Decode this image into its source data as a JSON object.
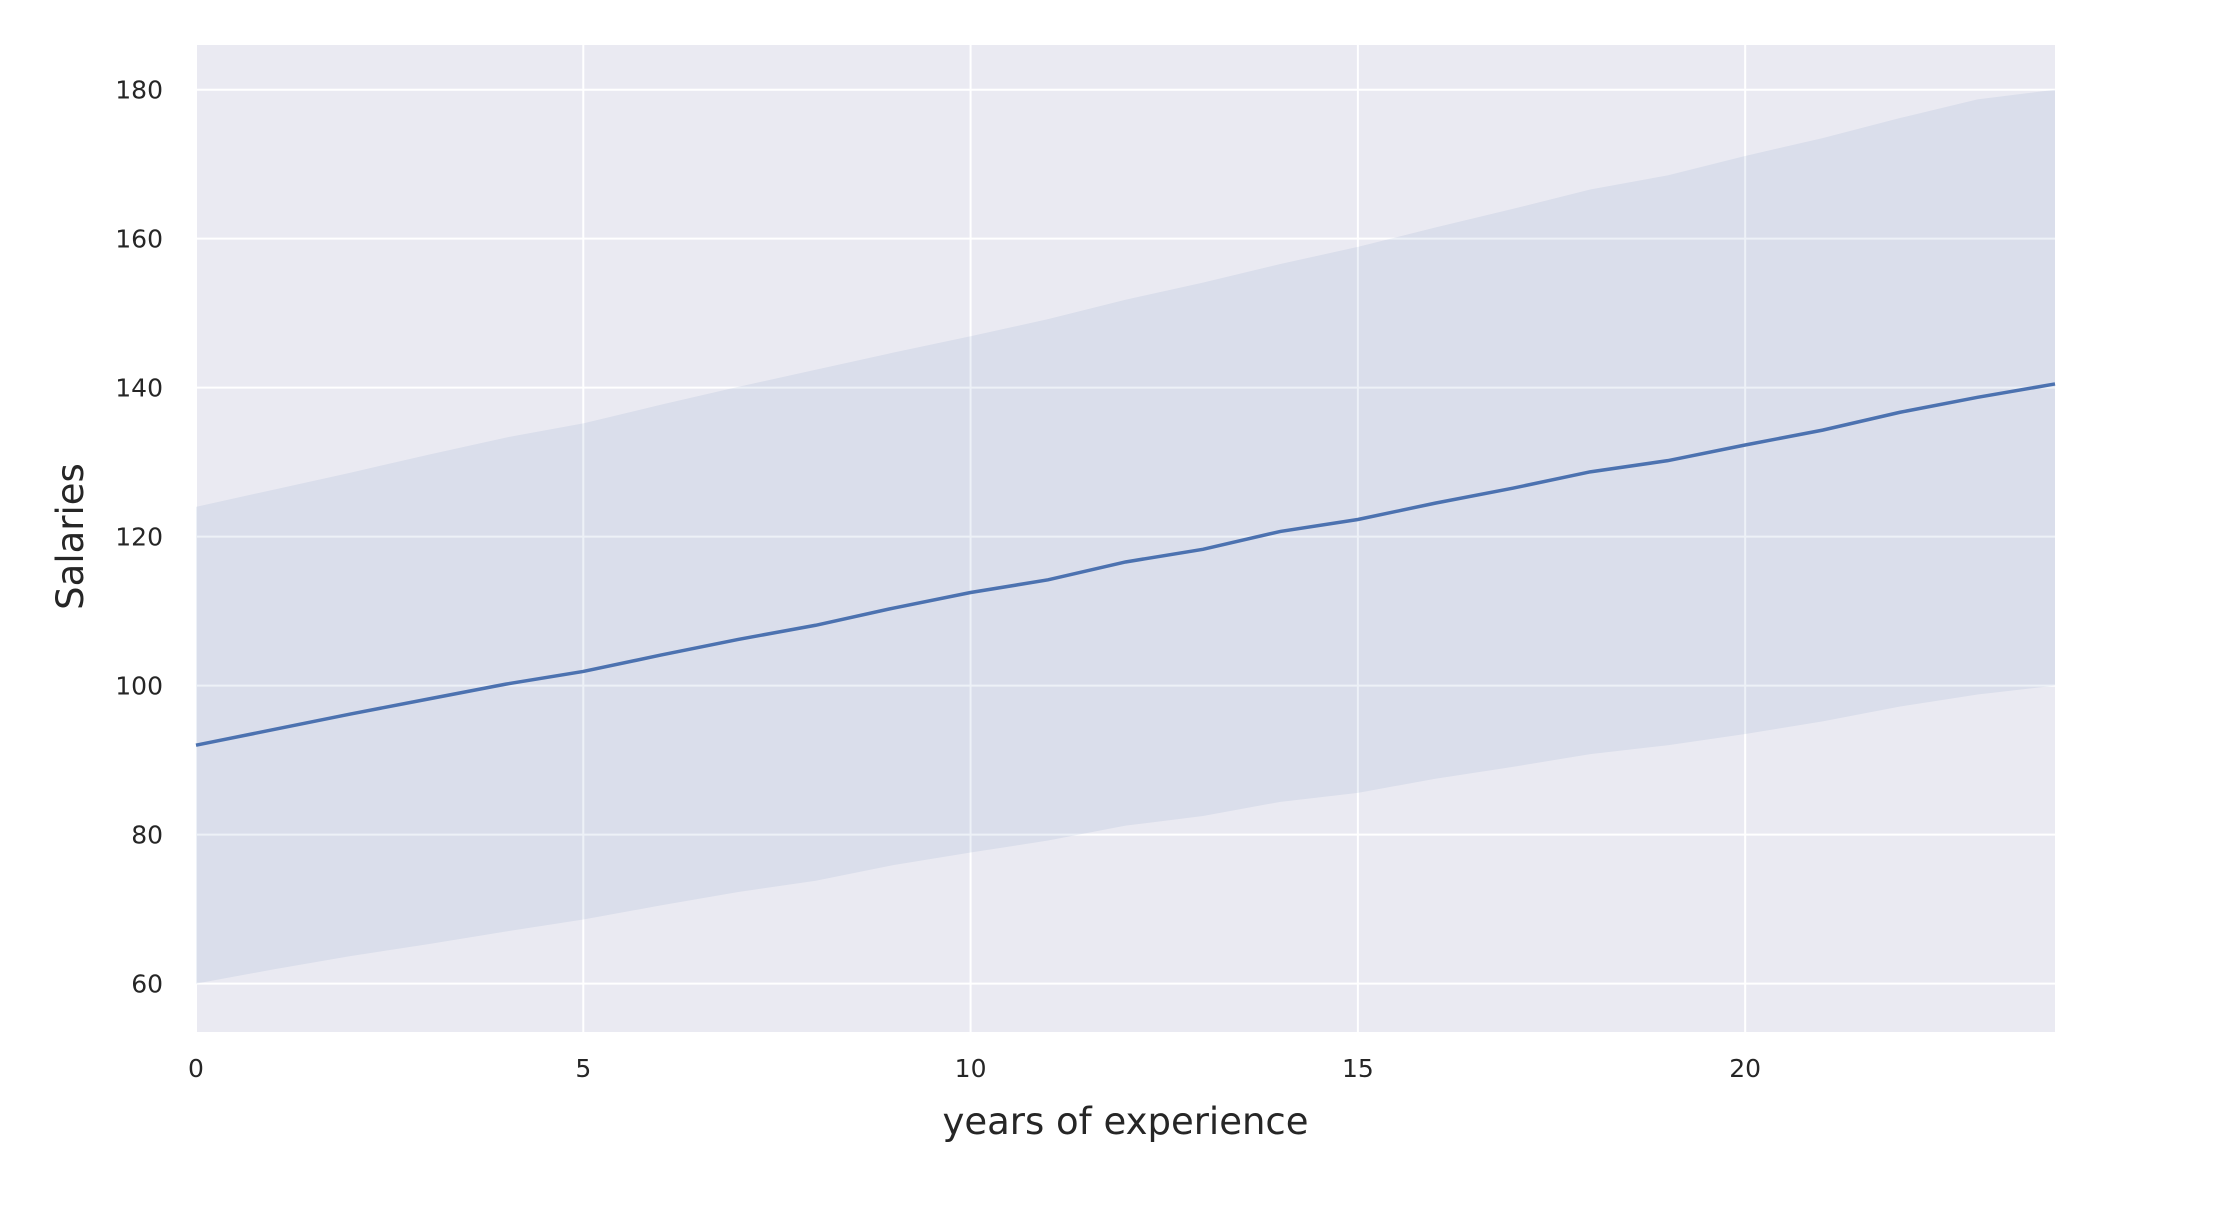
{
  "chart_data": {
    "type": "line",
    "title": "",
    "xlabel": "years of experience",
    "ylabel": "Salaries",
    "xlim": [
      0,
      24
    ],
    "ylim": [
      53.5,
      186
    ],
    "xticks": [
      0,
      5,
      10,
      15,
      20
    ],
    "yticks": [
      60,
      80,
      100,
      120,
      140,
      160,
      180
    ],
    "grid": true,
    "legend": "none",
    "colors": {
      "background": "#eaeaf2",
      "grid": "#ffffff",
      "line": "#4c72b0",
      "band": "#d8dcec"
    },
    "series": [
      {
        "x": [
          0,
          1,
          2,
          3,
          4,
          5,
          6,
          7,
          8,
          9,
          10,
          11,
          12,
          13,
          14,
          15,
          16,
          17,
          18,
          19,
          20,
          21,
          22,
          23,
          24
        ],
        "values": [
          92,
          94.1,
          96.2,
          98.2,
          100.2,
          101.9,
          104.1,
          106.2,
          108.1,
          110.4,
          112.5,
          114.2,
          116.6,
          118.3,
          120.7,
          122.3,
          124.5,
          126.5,
          128.7,
          130.2,
          132.3,
          134.3,
          136.7,
          138.7,
          140.5
        ],
        "ci_upper": [
          124,
          126.3,
          128.6,
          131,
          133.3,
          135.2,
          137.7,
          140.1,
          142.4,
          144.7,
          146.9,
          149.2,
          151.8,
          154.1,
          156.6,
          158.9,
          161.5,
          164,
          166.6,
          168.5,
          171.1,
          173.5,
          176.2,
          178.7,
          180
        ],
        "ci_lower": [
          60,
          61.9,
          63.7,
          65.3,
          67,
          68.6,
          70.5,
          72.3,
          73.8,
          75.9,
          77.6,
          79.2,
          81.2,
          82.5,
          84.4,
          85.6,
          87.5,
          89.1,
          90.8,
          92,
          93.5,
          95.2,
          97.2,
          98.8,
          100
        ]
      }
    ]
  }
}
